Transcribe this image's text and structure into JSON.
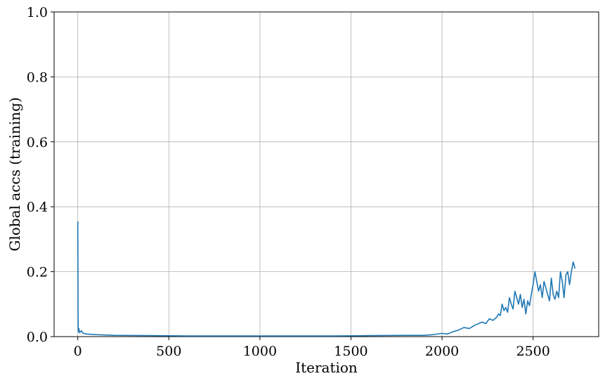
{
  "chart_data": {
    "type": "line",
    "title": "",
    "xlabel": "Iteration",
    "ylabel": "Global accs (training)",
    "xlim": [
      -130,
      2860
    ],
    "ylim": [
      0.0,
      1.0
    ],
    "xticks": [
      0,
      500,
      1000,
      1500,
      2000,
      2500
    ],
    "xtick_labels": [
      "0",
      "500",
      "1000",
      "1500",
      "2000",
      "2500"
    ],
    "yticks": [
      0.0,
      0.2,
      0.4,
      0.6,
      0.8,
      1.0
    ],
    "ytick_labels": [
      "0.0",
      "0.2",
      "0.4",
      "0.6",
      "0.8",
      "1.0"
    ],
    "grid": true,
    "line_color": "#1f77b4",
    "series": [
      {
        "x": [
          0,
          2,
          4,
          6,
          10,
          20,
          30,
          50,
          100,
          200,
          400,
          600,
          800,
          1000,
          1200,
          1400,
          1600,
          1800,
          1900,
          1950,
          2000,
          2030,
          2060,
          2090,
          2120,
          2150,
          2180,
          2200,
          2220,
          2240,
          2260,
          2280,
          2300,
          2310,
          2320,
          2330,
          2340,
          2350,
          2360,
          2370,
          2380,
          2390,
          2400,
          2410,
          2420,
          2430,
          2440,
          2450,
          2460,
          2470,
          2480,
          2490,
          2500,
          2510,
          2520,
          2530,
          2540,
          2550,
          2560,
          2570,
          2580,
          2590,
          2600,
          2610,
          2620,
          2630,
          2640,
          2650,
          2660,
          2670,
          2680,
          2690,
          2700,
          2710,
          2720,
          2730
        ],
        "y": [
          0.355,
          0.02,
          0.015,
          0.025,
          0.012,
          0.018,
          0.01,
          0.008,
          0.006,
          0.004,
          0.003,
          0.002,
          0.002,
          0.002,
          0.002,
          0.002,
          0.003,
          0.004,
          0.004,
          0.006,
          0.01,
          0.008,
          0.015,
          0.02,
          0.028,
          0.025,
          0.035,
          0.04,
          0.045,
          0.04,
          0.055,
          0.05,
          0.06,
          0.07,
          0.065,
          0.1,
          0.08,
          0.09,
          0.075,
          0.12,
          0.1,
          0.085,
          0.14,
          0.12,
          0.1,
          0.13,
          0.09,
          0.115,
          0.07,
          0.11,
          0.095,
          0.13,
          0.16,
          0.2,
          0.17,
          0.14,
          0.16,
          0.12,
          0.17,
          0.15,
          0.13,
          0.11,
          0.18,
          0.13,
          0.115,
          0.14,
          0.12,
          0.2,
          0.17,
          0.12,
          0.19,
          0.2,
          0.16,
          0.2,
          0.23,
          0.21
        ]
      }
    ]
  }
}
